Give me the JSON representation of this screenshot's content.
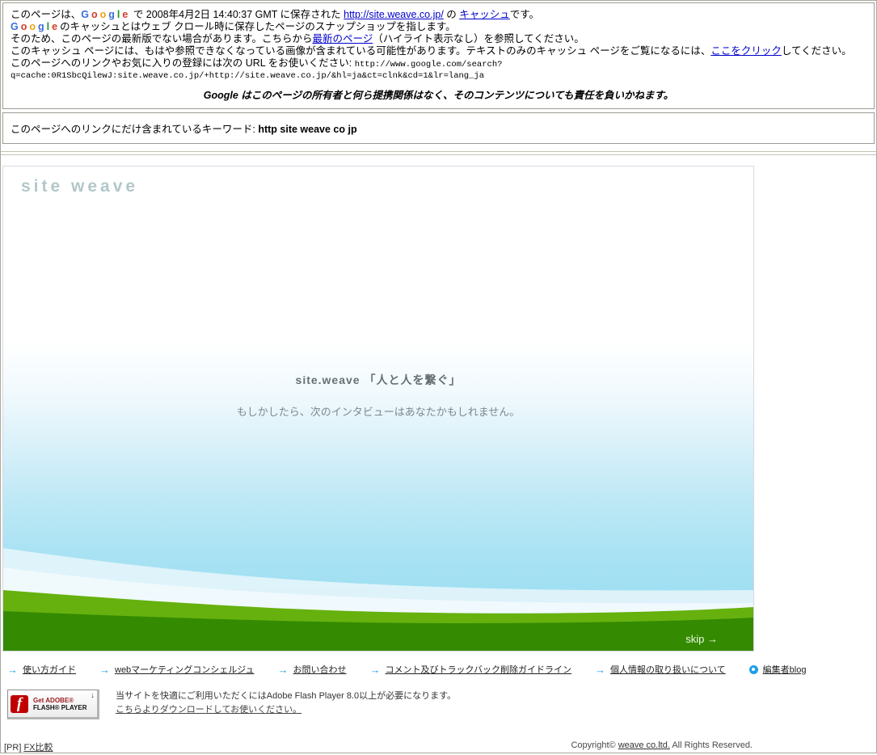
{
  "cache_header": {
    "google_letters": [
      {
        "ch": "G",
        "color": "#3b6fd8"
      },
      {
        "ch": "o",
        "color": "#d23b2c"
      },
      {
        "ch": "o",
        "color": "#eda412"
      },
      {
        "ch": "g",
        "color": "#3b6fd8"
      },
      {
        "ch": "l",
        "color": "#1f9622"
      },
      {
        "ch": "e",
        "color": "#d23b2c"
      }
    ],
    "line1_pre": "このページは、",
    "line1_mid": " で 2008年4月2日 14:40:37 GMT に保存された ",
    "line1_url": "http://site.weave.co.jp/",
    "line1_mid2": " の ",
    "line1_cache_link": "キャッシュ",
    "line1_end": "です。",
    "line2_rest": "のキャッシュとはウェブ クロール時に保存したページのスナップショップを指します。",
    "line3_pre": "そのため、このページの最新版でない場合があります。こちらから",
    "line3_link": "最新のページ",
    "line3_end": "（ハイライト表示なし）を参照してください。",
    "line4_pre": "このキャッシュ ページには、もはや参照できなくなっている画像が含まれている可能性があります。テキストのみのキャッシュ ページをご覧になるには、",
    "line4_link": "ここをクリック",
    "line4_end": "してください。",
    "line5_pre": "このページへのリンクやお気に入りの登録には次の URL をお使いください: ",
    "line5_url1": "http://www.google.com/search?",
    "line5_url2": "q=cache:0R1SbcQilewJ:site.weave.co.jp/+http://site.weave.co.jp/&hl=ja&ct=clnk&cd=1&lr=lang_ja",
    "disclaimer": "Google はこのページの所有者と何ら提携関係はなく、そのコンテンツについても責任を負いかねます。"
  },
  "keyword_box": {
    "label": "このページへのリンクにだけ含まれているキーワード: ",
    "keywords": "http site weave co jp"
  },
  "main": {
    "logo": "site weave",
    "headline": "site.weave 「人と人を繋ぐ」",
    "subline": "もしかしたら、次のインタビューはあなたかもしれません。",
    "skip": "skip →"
  },
  "footer_nav": {
    "items": [
      {
        "id": "guide",
        "icon": "arrow",
        "label": "使い方ガイド"
      },
      {
        "id": "web-marketing",
        "icon": "arrow",
        "label": "webマーケティングコンシェルジュ"
      },
      {
        "id": "contact",
        "icon": "arrow",
        "label": "お問い合わせ"
      },
      {
        "id": "comment-guideline",
        "icon": "arrow",
        "label": "コメント及びトラックバック削除ガイドライン"
      },
      {
        "id": "privacy",
        "icon": "arrow",
        "label": "個人情報の取り扱いについて"
      },
      {
        "id": "editor-blog",
        "icon": "dot",
        "label": "編集者blog"
      }
    ]
  },
  "flash": {
    "icon_letter": "f",
    "badge_line1": "Get ADOBE®",
    "badge_line2": "FLASH® PLAYER",
    "badge_arrow": "↓",
    "text1": "当サイトを快適にご利用いただくにはAdobe Flash Player 8.0以上が必要になります。",
    "link": "こちらよりダウンロードしてお使いください。"
  },
  "bottom": {
    "pr": "[PR] ",
    "pr_link": "FX比較",
    "copyright_pre": "Copyright© ",
    "copyright_link": "weave co.ltd.",
    "copyright_end": " All Rights Reserved."
  },
  "colors": {
    "link_blue": "#0000cc",
    "nav_accent_blue": "#1d9fe6",
    "grass_light_green": "#66b10e",
    "grass_dark_green": "#348b01",
    "sky_blue": "#95dcf1",
    "logo_gray_blue": "#b3c7ca",
    "flash_red": "#c00000",
    "border_gray": "#9c9c94"
  }
}
